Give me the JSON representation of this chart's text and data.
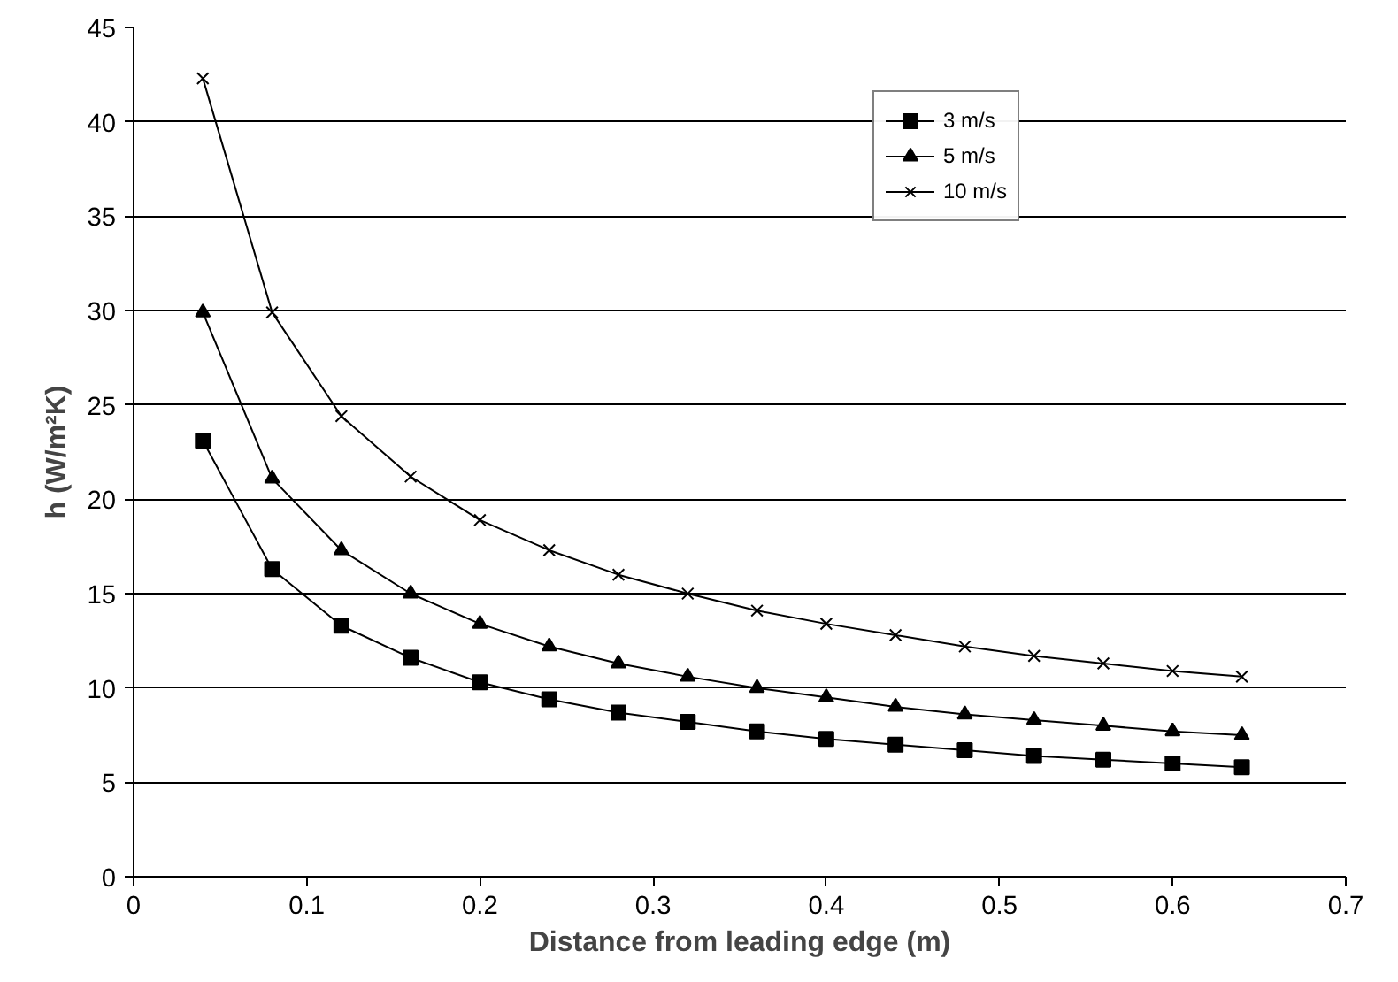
{
  "chart_data": {
    "type": "line",
    "xlabel": "Distance from leading edge (m)",
    "ylabel": "h (W/m²K)",
    "x": [
      0.04,
      0.08,
      0.12,
      0.16,
      0.2,
      0.24,
      0.28,
      0.32,
      0.36,
      0.4,
      0.44,
      0.48,
      0.52,
      0.56,
      0.6,
      0.64
    ],
    "series": [
      {
        "name": "3 m/s",
        "color": "#000000",
        "marker": "square",
        "values": [
          23.1,
          16.3,
          13.3,
          11.6,
          10.3,
          9.4,
          8.7,
          8.2,
          7.7,
          7.3,
          7.0,
          6.7,
          6.4,
          6.2,
          6.0,
          5.8
        ]
      },
      {
        "name": "5 m/s",
        "color": "#000000",
        "marker": "triangle",
        "values": [
          29.9,
          21.1,
          17.3,
          15.0,
          13.4,
          12.2,
          11.3,
          10.6,
          10.0,
          9.5,
          9.0,
          8.6,
          8.3,
          8.0,
          7.7,
          7.5
        ]
      },
      {
        "name": "10 m/s",
        "color": "#000000",
        "marker": "cross",
        "values": [
          42.3,
          29.9,
          24.4,
          21.2,
          18.9,
          17.3,
          16.0,
          15.0,
          14.1,
          13.4,
          12.8,
          12.2,
          11.7,
          11.3,
          10.9,
          10.6
        ]
      }
    ],
    "xlim": [
      0,
      0.7
    ],
    "xticks": [
      0,
      0.1,
      0.2,
      0.3,
      0.4,
      0.5,
      0.6,
      0.7
    ],
    "ylim": [
      0,
      45
    ],
    "yticks": [
      0,
      5,
      10,
      15,
      20,
      25,
      30,
      35,
      40,
      45
    ],
    "grid": "y",
    "legend": "top right",
    "line_style": "solid"
  }
}
